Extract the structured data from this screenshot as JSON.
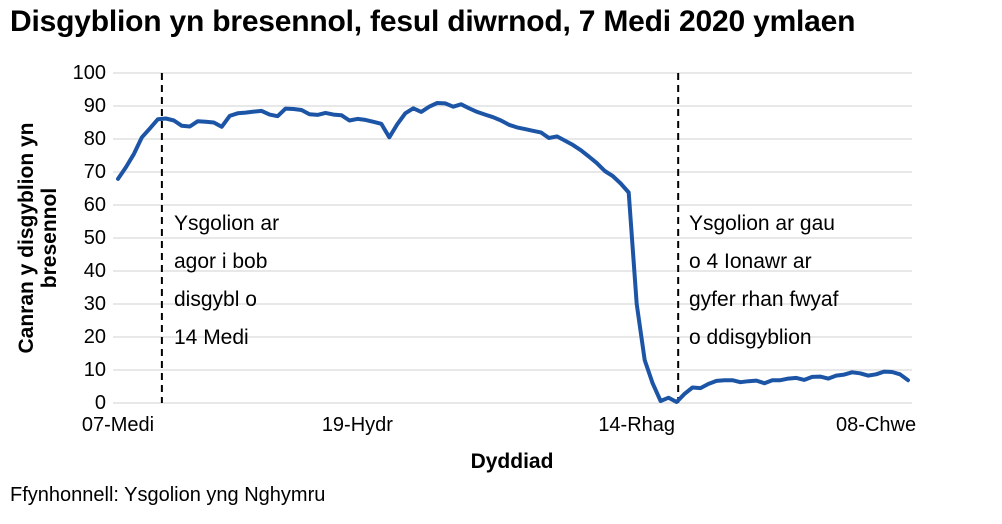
{
  "title": "Disgyblion yn bresennol, fesul diwrnod, 7 Medi 2020 ymlaen",
  "source": "Ffynhonnell: Ysgolion yng Nghymru",
  "colors": {
    "line": "#1d55a6",
    "gridline": "#d9d9d9",
    "annotation_line": "#000000",
    "text": "#000000",
    "background": "#ffffff"
  },
  "annotations": [
    {
      "text": "Ysgolion ar\nagor i bob\ndisgybl o\n14 Medi",
      "at_day_index": 5.5
    },
    {
      "text": "Ysgolion ar gau\no 4 Ionawr ar\ngyfer rhan fwyaf\no ddisgyblion",
      "at_day_index": 70.2
    }
  ],
  "chart_data": {
    "type": "line",
    "title": "Disgyblion yn bresennol, fesul diwrnod, 7 Medi 2020 ymlaen",
    "xlabel": "Dyddiad",
    "ylabel": "Canran y disgyblion yn\nbresennol",
    "ylim": [
      0,
      100
    ],
    "yticks": [
      0,
      10,
      20,
      30,
      40,
      50,
      60,
      70,
      80,
      90,
      100
    ],
    "grid": "horizontal",
    "legend": "none",
    "xticks": [
      {
        "label": "07-Medi",
        "index": 0
      },
      {
        "label": "19-Hydr",
        "index": 30
      },
      {
        "label": "14-Rhag",
        "index": 65
      },
      {
        "label": "08-Chwe",
        "index": 95
      }
    ],
    "x_dates": [
      "2020-09-07",
      "2020-09-08",
      "2020-09-09",
      "2020-09-10",
      "2020-09-11",
      "2020-09-14",
      "2020-09-15",
      "2020-09-16",
      "2020-09-17",
      "2020-09-18",
      "2020-09-21",
      "2020-09-22",
      "2020-09-23",
      "2020-09-24",
      "2020-09-25",
      "2020-09-28",
      "2020-09-29",
      "2020-09-30",
      "2020-10-01",
      "2020-10-02",
      "2020-10-05",
      "2020-10-06",
      "2020-10-07",
      "2020-10-08",
      "2020-10-09",
      "2020-10-12",
      "2020-10-13",
      "2020-10-14",
      "2020-10-15",
      "2020-10-16",
      "2020-10-19",
      "2020-10-20",
      "2020-10-21",
      "2020-10-22",
      "2020-10-23",
      "2020-11-02",
      "2020-11-03",
      "2020-11-04",
      "2020-11-05",
      "2020-11-06",
      "2020-11-09",
      "2020-11-10",
      "2020-11-11",
      "2020-11-12",
      "2020-11-13",
      "2020-11-16",
      "2020-11-17",
      "2020-11-18",
      "2020-11-19",
      "2020-11-20",
      "2020-11-23",
      "2020-11-24",
      "2020-11-25",
      "2020-11-26",
      "2020-11-27",
      "2020-11-30",
      "2020-12-01",
      "2020-12-02",
      "2020-12-03",
      "2020-12-04",
      "2020-12-07",
      "2020-12-08",
      "2020-12-09",
      "2020-12-10",
      "2020-12-11",
      "2020-12-14",
      "2020-12-15",
      "2020-12-16",
      "2020-12-17",
      "2020-12-18",
      "2021-01-04",
      "2021-01-05",
      "2021-01-06",
      "2021-01-07",
      "2021-01-08",
      "2021-01-11",
      "2021-01-12",
      "2021-01-13",
      "2021-01-14",
      "2021-01-15",
      "2021-01-18",
      "2021-01-19",
      "2021-01-20",
      "2021-01-21",
      "2021-01-22",
      "2021-01-25",
      "2021-01-26",
      "2021-01-27",
      "2021-01-28",
      "2021-01-29",
      "2021-02-01",
      "2021-02-02",
      "2021-02-03",
      "2021-02-04",
      "2021-02-05",
      "2021-02-08",
      "2021-02-09",
      "2021-02-10",
      "2021-02-11",
      "2021-02-12"
    ],
    "values": [
      67.9,
      71.5,
      75.5,
      80.5,
      83.2,
      86.0,
      86.2,
      85.6,
      84.0,
      83.8,
      85.4,
      85.2,
      85.0,
      83.7,
      87.0,
      87.8,
      88.0,
      88.3,
      88.5,
      87.4,
      86.9,
      89.2,
      89.1,
      88.8,
      87.5,
      87.3,
      87.9,
      87.4,
      87.2,
      85.6,
      86.1,
      85.8,
      85.2,
      84.6,
      80.5,
      84.5,
      87.8,
      89.3,
      88.2,
      89.8,
      90.9,
      90.8,
      89.8,
      90.5,
      89.3,
      88.2,
      87.4,
      86.6,
      85.6,
      84.3,
      83.5,
      83.0,
      82.5,
      82.0,
      80.3,
      80.8,
      79.5,
      78.2,
      76.6,
      74.7,
      72.7,
      70.3,
      68.8,
      66.5,
      63.8,
      30.0,
      13.0,
      6.0,
      0.6,
      1.6,
      0.3,
      2.8,
      4.7,
      4.5,
      5.8,
      6.7,
      6.9,
      6.9,
      6.3,
      6.6,
      6.8,
      6.0,
      6.9,
      6.9,
      7.4,
      7.6,
      7.0,
      7.9,
      8.0,
      7.4,
      8.3,
      8.6,
      9.3,
      9.0,
      8.3,
      8.7,
      9.5,
      9.4,
      8.7,
      6.9
    ]
  }
}
